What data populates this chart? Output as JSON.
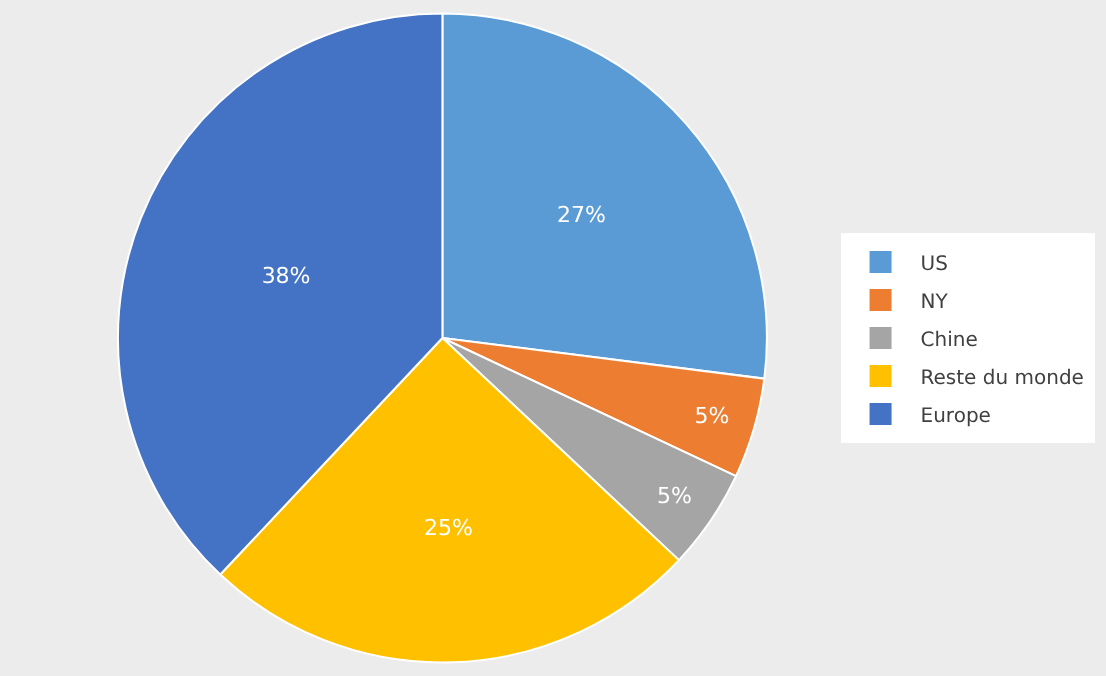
{
  "chart_data": {
    "type": "pie",
    "categories": [
      "US",
      "NY",
      "Chine",
      "Reste du monde",
      "Europe"
    ],
    "values": [
      27,
      5,
      5,
      25,
      38
    ],
    "colors": [
      "#5b9bd5",
      "#ed7d31",
      "#a5a5a5",
      "#ffc000",
      "#4472c4"
    ],
    "value_labels": [
      "27%",
      "5%",
      "5%",
      "25%",
      "38%"
    ],
    "legend": "right"
  }
}
